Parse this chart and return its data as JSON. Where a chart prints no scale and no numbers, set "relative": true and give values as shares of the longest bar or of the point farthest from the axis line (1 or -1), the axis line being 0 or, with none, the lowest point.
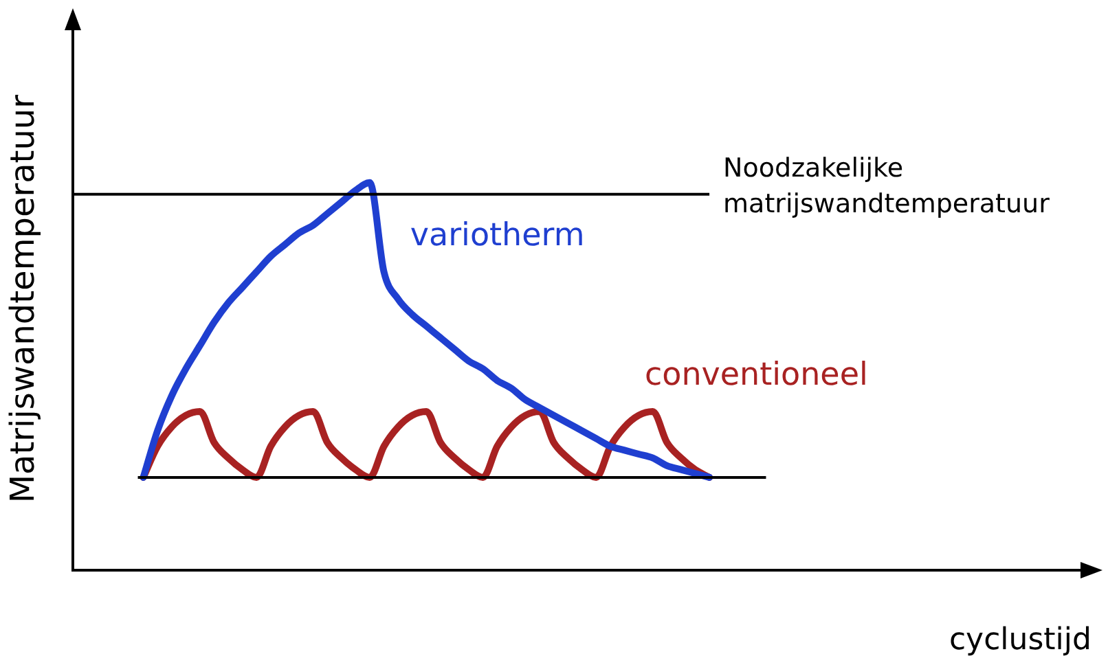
{
  "chart_data": {
    "type": "line",
    "relative": true,
    "xlabel": "cyclustijd",
    "ylabel": "Matrijswandtemperatuur",
    "legend": false,
    "marker": "none",
    "line_style": "solid",
    "grid": false,
    "categories": [
      null,
      null,
      null,
      null,
      null,
      null,
      null,
      null,
      null,
      null,
      null,
      null,
      null,
      null,
      null,
      null,
      null,
      null,
      null,
      null,
      null,
      null,
      null,
      null,
      null,
      null,
      null,
      null,
      null,
      null,
      null,
      null,
      null,
      null,
      null,
      null,
      null,
      null,
      null,
      null,
      null,
      null,
      null,
      null,
      null,
      null,
      null,
      null,
      null,
      null,
      null,
      null,
      null,
      null,
      null,
      null,
      null,
      null,
      null,
      null,
      null,
      null,
      null,
      null,
      null,
      null,
      null,
      null,
      null,
      null,
      null,
      null,
      null
    ],
    "series": [
      {
        "name": "variotherm",
        "color": "#1f3fd0",
        "values": [
          null,
          null,
          null,
          null,
          null,
          0.24,
          0.36,
          0.45,
          0.52,
          0.58,
          0.64,
          0.69,
          0.73,
          0.77,
          0.81,
          0.84,
          0.87,
          0.89,
          0.92,
          0.95,
          0.98,
          1.0,
          0.77,
          0.7,
          0.66,
          0.63,
          0.6,
          0.57,
          0.54,
          0.52,
          0.49,
          0.47,
          0.44,
          0.42,
          0.4,
          0.38,
          0.36,
          0.34,
          0.32,
          0.31,
          0.3,
          0.29,
          0.27,
          0.26,
          0.25,
          0.24,
          null,
          null,
          null,
          null,
          null,
          null,
          null,
          null,
          null,
          null,
          null,
          null,
          null,
          null,
          null,
          null,
          null,
          null,
          null,
          null,
          null,
          null,
          null,
          null,
          null,
          null,
          null
        ]
      },
      {
        "name": "conventioneel",
        "color": "#a82222",
        "values": [
          null,
          null,
          null,
          null,
          null,
          0.24,
          0.32,
          0.37,
          0.4,
          0.41,
          0.33,
          0.29,
          0.26,
          0.24,
          0.32,
          0.37,
          0.4,
          0.41,
          0.33,
          0.29,
          0.26,
          0.24,
          0.32,
          0.37,
          0.4,
          0.41,
          0.33,
          0.29,
          0.26,
          0.24,
          0.32,
          0.37,
          0.4,
          0.41,
          0.33,
          0.29,
          0.26,
          0.24,
          0.32,
          0.37,
          0.4,
          0.41,
          0.33,
          0.29,
          0.26,
          0.24,
          null,
          null,
          null,
          null,
          null,
          null,
          null,
          null,
          null,
          null,
          null,
          null,
          null,
          null,
          null,
          null,
          null,
          null,
          null,
          null,
          null,
          null,
          null,
          null,
          null,
          null,
          null
        ]
      }
    ],
    "ref_lines": [
      {
        "axis": "y",
        "value": 0.97,
        "label": "Noodzakelijke\nmatrijswandtemperatuur",
        "color": "#000000"
      },
      {
        "axis": "y",
        "value": 0.24,
        "color": "#000000"
      }
    ]
  }
}
